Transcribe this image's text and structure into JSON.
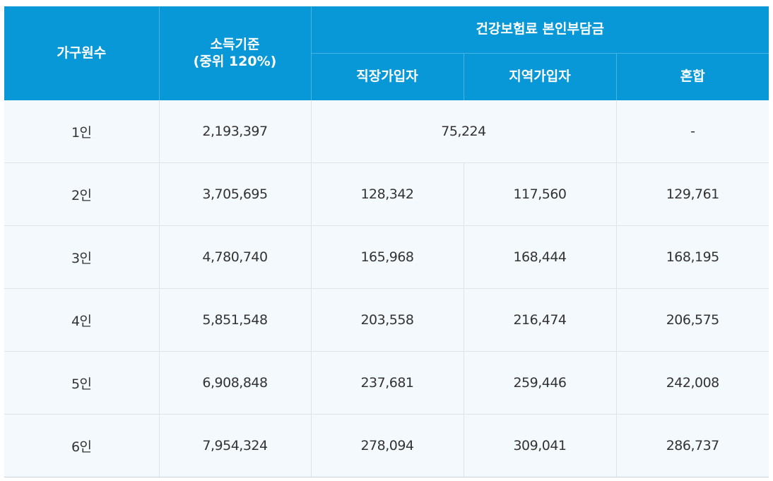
{
  "header": {
    "household": "가구원수",
    "income_line1": "소득기준",
    "income_line2": "(중위 120%)",
    "premium_group": "건강보험료 본인부담금",
    "employee": "직장가입자",
    "regional": "지역가입자",
    "mixed": "혼합"
  },
  "rows": [
    {
      "household": "1인",
      "income": "2,193,397",
      "employee_regional_merged": "75,224",
      "mixed": "-"
    },
    {
      "household": "2인",
      "income": "3,705,695",
      "employee": "128,342",
      "regional": "117,560",
      "mixed": "129,761"
    },
    {
      "household": "3인",
      "income": "4,780,740",
      "employee": "165,968",
      "regional": "168,444",
      "mixed": "168,195"
    },
    {
      "household": "4인",
      "income": "5,851,548",
      "employee": "203,558",
      "regional": "216,474",
      "mixed": "206,575"
    },
    {
      "household": "5인",
      "income": "6,908,848",
      "employee": "237,681",
      "regional": "259,446",
      "mixed": "242,008"
    },
    {
      "household": "6인",
      "income": "7,954,324",
      "employee": "278,094",
      "regional": "309,041",
      "mixed": "286,737"
    }
  ],
  "colors": {
    "header_bg": "#0898d7",
    "body_bg": "#f3f9fd",
    "border": "#dde4ea"
  }
}
